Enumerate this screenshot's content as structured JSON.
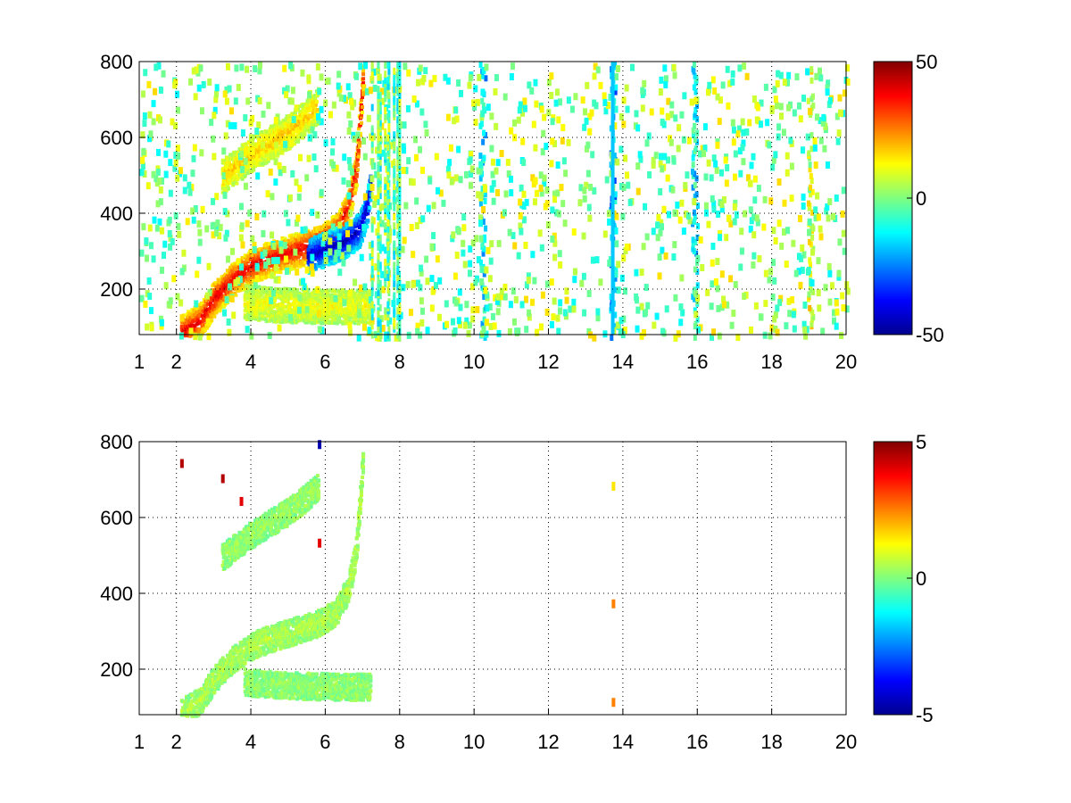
{
  "chart_data": [
    {
      "type": "heatmap",
      "title": "",
      "xlabel": "",
      "ylabel": "",
      "xlim": [
        1,
        20
      ],
      "ylim": [
        80,
        800
      ],
      "xticks": [
        1,
        2,
        4,
        6,
        8,
        10,
        12,
        14,
        16,
        18,
        20
      ],
      "yticks": [
        200,
        400,
        600,
        800
      ],
      "grid": true,
      "colormap": "jet",
      "colorbar": {
        "min": -50,
        "max": 50,
        "ticks": [
          -50,
          0,
          50
        ]
      },
      "features": [
        {
          "curve": [
            [
              2.1,
              90
            ],
            [
              2.6,
              120
            ],
            [
              3.0,
              180
            ],
            [
              3.5,
              230
            ],
            [
              4.0,
              265
            ],
            [
              4.5,
              285
            ],
            [
              5.0,
              300
            ],
            [
              5.5,
              315
            ],
            [
              5.9,
              330
            ],
            [
              6.3,
              360
            ],
            [
              6.6,
              420
            ],
            [
              6.8,
              520
            ],
            [
              6.9,
              650
            ],
            [
              7.0,
              780
            ]
          ],
          "value": 40
        },
        {
          "curve": [
            [
              3.2,
              500
            ],
            [
              3.6,
              530
            ],
            [
              4.0,
              560
            ],
            [
              4.5,
              590
            ],
            [
              5.0,
              620
            ],
            [
              5.5,
              660
            ],
            [
              5.8,
              690
            ]
          ],
          "value": 18
        },
        {
          "curve": [
            [
              3.8,
              170
            ],
            [
              4.5,
              163
            ],
            [
              5.2,
              160
            ],
            [
              6.0,
              158
            ],
            [
              6.8,
              157
            ],
            [
              7.2,
              157
            ]
          ],
          "value": 12
        },
        {
          "curve": [
            [
              5.5,
              290
            ],
            [
              6.0,
              310
            ],
            [
              6.5,
              330
            ],
            [
              6.9,
              360
            ],
            [
              7.1,
              420
            ],
            [
              7.2,
              500
            ]
          ],
          "value": -45
        }
      ],
      "noise_columns": [
        {
          "x": 13.7,
          "value": -20
        },
        {
          "x": 10.2,
          "value": -15
        },
        {
          "x": 15.9,
          "value": -12
        },
        {
          "x": 19.0,
          "value": 8
        }
      ]
    },
    {
      "type": "heatmap",
      "title": "",
      "xlabel": "",
      "ylabel": "",
      "xlim": [
        1,
        20
      ],
      "ylim": [
        80,
        800
      ],
      "xticks": [
        1,
        2,
        4,
        6,
        8,
        10,
        12,
        14,
        16,
        18,
        20
      ],
      "yticks": [
        200,
        400,
        600,
        800
      ],
      "grid": true,
      "colormap": "jet",
      "colorbar": {
        "min": -5,
        "max": 5,
        "ticks": [
          -5,
          0,
          5
        ]
      },
      "features": [
        {
          "curve": [
            [
              2.1,
              90
            ],
            [
              2.6,
              120
            ],
            [
              3.0,
              180
            ],
            [
              3.5,
              230
            ],
            [
              4.0,
              265
            ],
            [
              4.5,
              285
            ],
            [
              5.0,
              300
            ],
            [
              5.5,
              315
            ],
            [
              5.9,
              330
            ],
            [
              6.3,
              360
            ],
            [
              6.6,
              420
            ],
            [
              6.8,
              520
            ],
            [
              6.9,
              650
            ],
            [
              7.0,
              780
            ]
          ],
          "value": 0.5
        },
        {
          "curve": [
            [
              3.2,
              500
            ],
            [
              3.6,
              530
            ],
            [
              4.0,
              560
            ],
            [
              4.5,
              590
            ],
            [
              5.0,
              620
            ],
            [
              5.5,
              660
            ],
            [
              5.8,
              690
            ]
          ],
          "value": 0.3
        },
        {
          "curve": [
            [
              3.8,
              170
            ],
            [
              4.5,
              163
            ],
            [
              5.2,
              160
            ],
            [
              6.0,
              158
            ],
            [
              6.8,
              157
            ],
            [
              7.2,
              157
            ]
          ],
          "value": 0.2
        }
      ],
      "spots": [
        {
          "x": 13.7,
          "y": 110,
          "value": 2.5
        },
        {
          "x": 13.7,
          "y": 370,
          "value": 2.5
        },
        {
          "x": 13.7,
          "y": 680,
          "value": 1.5
        },
        {
          "x": 3.2,
          "y": 700,
          "value": 4.5
        },
        {
          "x": 3.7,
          "y": 640,
          "value": 4.0
        },
        {
          "x": 2.1,
          "y": 740,
          "value": 4.5
        },
        {
          "x": 5.8,
          "y": 530,
          "value": 4.0
        },
        {
          "x": 5.8,
          "y": 790,
          "value": -4.5
        }
      ]
    }
  ]
}
